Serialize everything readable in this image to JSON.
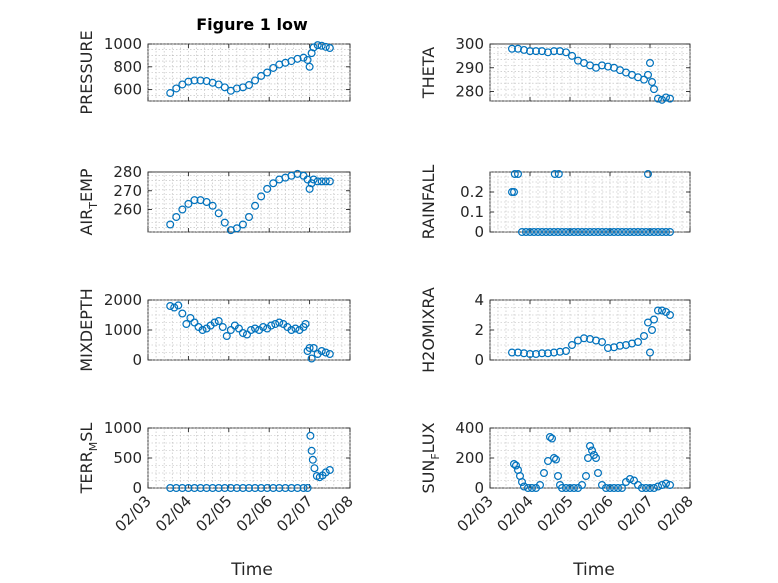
{
  "figure_title": "Figure 1 low",
  "xlabel": "Time",
  "x_ticks": [
    "02/03",
    "02/04",
    "02/05",
    "02/06",
    "02/07",
    "02/08"
  ],
  "marker_color": "#0072BD",
  "chart_data": [
    {
      "type": "scatter",
      "ylabel": "PRESSURE",
      "ylabel_sub": "",
      "ylabel_tail": "",
      "ylim": [
        500,
        1000
      ],
      "yticks": [
        600,
        800,
        1000
      ],
      "xlim": [
        3,
        8
      ],
      "x": [
        3.55,
        3.7,
        3.85,
        4.0,
        4.15,
        4.3,
        4.45,
        4.6,
        4.75,
        4.9,
        5.05,
        5.2,
        5.35,
        5.5,
        5.65,
        5.8,
        5.95,
        6.1,
        6.25,
        6.4,
        6.55,
        6.7,
        6.85,
        6.95,
        7.0,
        7.05,
        7.1,
        7.2,
        7.3,
        7.4,
        7.5
      ],
      "y": [
        570,
        610,
        645,
        670,
        680,
        680,
        675,
        660,
        645,
        620,
        590,
        610,
        620,
        640,
        680,
        720,
        750,
        790,
        820,
        835,
        850,
        870,
        880,
        860,
        800,
        920,
        970,
        990,
        985,
        975,
        965
      ]
    },
    {
      "type": "scatter",
      "ylabel": "THETA",
      "ylabel_sub": "",
      "ylabel_tail": "",
      "ylim": [
        276,
        300
      ],
      "yticks": [
        280,
        290,
        300
      ],
      "xlim": [
        3,
        8
      ],
      "x": [
        3.55,
        3.7,
        3.85,
        4.0,
        4.15,
        4.3,
        4.45,
        4.6,
        4.75,
        4.9,
        5.05,
        5.2,
        5.35,
        5.5,
        5.65,
        5.8,
        5.95,
        6.1,
        6.25,
        6.4,
        6.55,
        6.7,
        6.85,
        6.95,
        7.0,
        7.05,
        7.1,
        7.2,
        7.3,
        7.4,
        7.5
      ],
      "y": [
        298,
        298,
        297.5,
        297,
        297,
        297,
        296.5,
        297,
        297,
        296.5,
        295,
        293,
        292,
        291,
        290,
        291,
        290.5,
        290,
        289,
        288,
        287,
        286,
        285,
        287,
        292,
        284,
        281,
        277,
        276.5,
        277.5,
        277
      ]
    },
    {
      "type": "scatter",
      "ylabel": "AIR",
      "ylabel_sub": "T",
      "ylabel_tail": "EMP",
      "ylim": [
        248,
        280
      ],
      "yticks": [
        260,
        270,
        280
      ],
      "xlim": [
        3,
        8
      ],
      "x": [
        3.55,
        3.7,
        3.85,
        4.0,
        4.15,
        4.3,
        4.45,
        4.6,
        4.75,
        4.9,
        5.05,
        5.2,
        5.35,
        5.5,
        5.65,
        5.8,
        5.95,
        6.1,
        6.25,
        6.4,
        6.55,
        6.7,
        6.85,
        6.95,
        7.0,
        7.05,
        7.1,
        7.2,
        7.3,
        7.4,
        7.5
      ],
      "y": [
        252,
        256,
        260,
        263,
        265,
        265,
        264,
        262,
        258,
        253,
        249,
        250,
        252,
        256,
        262,
        267,
        271,
        274,
        276,
        277,
        278,
        279,
        278,
        276,
        271,
        274,
        276,
        275,
        275,
        275,
        275
      ]
    },
    {
      "type": "scatter",
      "ylabel": "RAINFALL",
      "ylabel_sub": "",
      "ylabel_tail": "",
      "ylim": [
        0,
        0.3
      ],
      "yticks": [
        0,
        0.1,
        0.2
      ],
      "xlim": [
        3,
        8
      ],
      "x": [
        3.55,
        3.6,
        3.62,
        3.7,
        3.8,
        3.9,
        4.0,
        4.1,
        4.2,
        4.3,
        4.4,
        4.5,
        4.6,
        4.62,
        4.7,
        4.72,
        4.8,
        4.9,
        5.0,
        5.1,
        5.2,
        5.3,
        5.4,
        5.5,
        5.6,
        5.7,
        5.8,
        5.9,
        6.0,
        6.1,
        6.2,
        6.3,
        6.4,
        6.5,
        6.6,
        6.7,
        6.8,
        6.9,
        6.95,
        7.0,
        7.1,
        7.2,
        7.3,
        7.4,
        7.5
      ],
      "y": [
        0.2,
        0.2,
        0.29,
        0.29,
        0,
        0,
        0,
        0,
        0,
        0,
        0,
        0,
        0,
        0.29,
        0,
        0.29,
        0,
        0,
        0,
        0,
        0,
        0,
        0,
        0,
        0,
        0,
        0,
        0,
        0,
        0,
        0,
        0,
        0,
        0,
        0,
        0,
        0,
        0,
        0.29,
        0,
        0,
        0,
        0,
        0,
        0
      ]
    },
    {
      "type": "scatter",
      "ylabel": "MIXDEPTH",
      "ylabel_sub": "",
      "ylabel_tail": "",
      "ylim": [
        0,
        2000
      ],
      "yticks": [
        0,
        1000,
        2000
      ],
      "xlim": [
        3,
        8
      ],
      "x": [
        3.55,
        3.65,
        3.75,
        3.85,
        3.95,
        4.05,
        4.15,
        4.25,
        4.35,
        4.45,
        4.55,
        4.65,
        4.75,
        4.85,
        4.95,
        5.05,
        5.15,
        5.25,
        5.35,
        5.45,
        5.55,
        5.65,
        5.75,
        5.85,
        5.95,
        6.05,
        6.15,
        6.25,
        6.35,
        6.45,
        6.55,
        6.65,
        6.75,
        6.85,
        6.9,
        6.95,
        7.0,
        7.05,
        7.1,
        7.2,
        7.3,
        7.4,
        7.5
      ],
      "y": [
        1800,
        1750,
        1820,
        1550,
        1200,
        1400,
        1250,
        1100,
        1000,
        1050,
        1150,
        1250,
        1300,
        1100,
        800,
        1000,
        1150,
        1050,
        900,
        850,
        1000,
        1050,
        1000,
        1100,
        1050,
        1150,
        1200,
        1250,
        1200,
        1100,
        1000,
        1050,
        1000,
        1100,
        1200,
        300,
        400,
        50,
        400,
        200,
        300,
        250,
        200
      ]
    },
    {
      "type": "scatter",
      "ylabel": "H2OMIXRA",
      "ylabel_sub": "",
      "ylabel_tail": "",
      "ylim": [
        0,
        4
      ],
      "yticks": [
        0,
        2,
        4
      ],
      "xlim": [
        3,
        8
      ],
      "x": [
        3.55,
        3.7,
        3.85,
        4.0,
        4.15,
        4.3,
        4.45,
        4.6,
        4.75,
        4.9,
        5.05,
        5.2,
        5.35,
        5.5,
        5.65,
        5.8,
        5.95,
        6.1,
        6.25,
        6.4,
        6.55,
        6.7,
        6.85,
        6.95,
        7.0,
        7.05,
        7.1,
        7.2,
        7.3,
        7.4,
        7.5
      ],
      "y": [
        0.5,
        0.5,
        0.45,
        0.4,
        0.4,
        0.45,
        0.45,
        0.5,
        0.55,
        0.6,
        1.0,
        1.3,
        1.45,
        1.4,
        1.3,
        1.2,
        0.8,
        0.85,
        0.95,
        1.0,
        1.1,
        1.2,
        1.6,
        2.5,
        0.5,
        2.0,
        2.7,
        3.3,
        3.3,
        3.2,
        3.0
      ]
    },
    {
      "type": "scatter",
      "ylabel": "TERR",
      "ylabel_sub": "M",
      "ylabel_tail": "SL",
      "ylim": [
        0,
        1000
      ],
      "yticks": [
        0,
        500,
        1000
      ],
      "xlim": [
        3,
        8
      ],
      "x": [
        3.55,
        3.7,
        3.85,
        4.0,
        4.15,
        4.3,
        4.45,
        4.6,
        4.75,
        4.9,
        5.05,
        5.2,
        5.35,
        5.5,
        5.65,
        5.8,
        5.95,
        6.1,
        6.25,
        6.4,
        6.55,
        6.7,
        6.85,
        6.95,
        7.02,
        7.05,
        7.08,
        7.12,
        7.18,
        7.25,
        7.32,
        7.4,
        7.5
      ],
      "y": [
        0,
        0,
        0,
        0,
        0,
        0,
        0,
        0,
        0,
        0,
        0,
        0,
        0,
        0,
        0,
        0,
        0,
        0,
        0,
        0,
        0,
        0,
        0,
        0,
        870,
        620,
        470,
        330,
        200,
        180,
        210,
        260,
        300
      ]
    },
    {
      "type": "scatter",
      "ylabel": "SUN",
      "ylabel_sub": "F",
      "ylabel_tail": "LUX",
      "ylim": [
        0,
        400
      ],
      "yticks": [
        0,
        200,
        400
      ],
      "xlim": [
        3,
        8
      ],
      "x": [
        3.6,
        3.65,
        3.7,
        3.75,
        3.8,
        3.85,
        3.95,
        4.05,
        4.15,
        4.25,
        4.35,
        4.45,
        4.5,
        4.55,
        4.6,
        4.65,
        4.7,
        4.75,
        4.8,
        4.9,
        5.0,
        5.1,
        5.2,
        5.3,
        5.4,
        5.45,
        5.5,
        5.55,
        5.6,
        5.65,
        5.7,
        5.8,
        5.9,
        6.0,
        6.1,
        6.2,
        6.3,
        6.4,
        6.5,
        6.6,
        6.7,
        6.8,
        6.9,
        7.0,
        7.1,
        7.2,
        7.3,
        7.4,
        7.5
      ],
      "y": [
        160,
        150,
        120,
        80,
        40,
        10,
        0,
        0,
        0,
        20,
        100,
        180,
        340,
        330,
        200,
        190,
        80,
        20,
        0,
        0,
        0,
        0,
        0,
        20,
        80,
        200,
        280,
        250,
        220,
        200,
        100,
        20,
        0,
        0,
        0,
        0,
        0,
        40,
        60,
        50,
        20,
        0,
        0,
        0,
        0,
        10,
        20,
        30,
        20
      ]
    }
  ]
}
